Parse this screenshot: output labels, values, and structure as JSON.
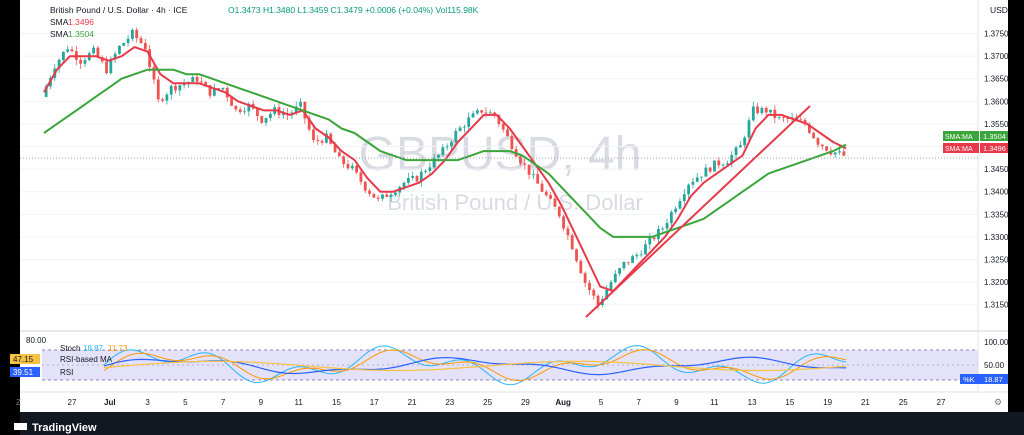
{
  "header": {
    "title": "British Pound / U.S. Dollar · 4h · ICE",
    "ohlc": "O1.3473 H1.3480 L1.3459 C1.3479 +0.0006 (+0.04%) Vol115.98K",
    "sma1": "SMA",
    "sma1_value": "1.3496",
    "sma2": "SMA",
    "sma2_value": "1.3504"
  },
  "watermark": {
    "symbol": "GBPUSD, 4h",
    "name": "British Pound / U.S. Dollar"
  },
  "currency": "USD",
  "badges": {
    "sma50_label": "SMA:MA",
    "sma50_value": "1.3504",
    "sma10_label": "SMA:MA",
    "sma10_value": "1.3496",
    "stoch_k_label": "%K",
    "stoch_k_value": "18.87"
  },
  "oscillator": {
    "stoch_label": "Stoch",
    "stoch_k": "18.87",
    "stoch_d": "11.73",
    "rsi_ma_value": "47.15",
    "rsi_ma_label": "RSI-based MA",
    "rsi_value": "39.51",
    "rsi_label": "RSI",
    "level_label": "80.00"
  },
  "brand": "TradingView",
  "colors": {
    "up": "#26a69a",
    "down": "#ef5350",
    "sma_fast": "#e8394a",
    "sma_slow": "#3aa53a",
    "trendline": "#e8394a",
    "rsi": "#2962ff",
    "rsi_ma": "#f5c242",
    "stoch_k": "#29b6f6",
    "stoch_d": "#ff9800"
  },
  "chart_data": {
    "type": "line",
    "xlabel": "",
    "ylabel": "",
    "ylim": [
      1.3125,
      1.378
    ],
    "x_ticks": [
      "27",
      "Jul",
      "3",
      "5",
      "7",
      "9",
      "11",
      "15",
      "17",
      "21",
      "23",
      "25",
      "29",
      "Aug",
      "5",
      "7",
      "9",
      "11",
      "13",
      "15",
      "19",
      "21",
      "25",
      "27"
    ],
    "y_ticks": [
      1.315,
      1.32,
      1.325,
      1.33,
      1.335,
      1.34,
      1.345,
      1.35,
      1.355,
      1.36,
      1.365,
      1.37,
      1.375
    ],
    "osc_ticks": [
      100.0,
      50.0
    ],
    "price_path": [
      1.361,
      1.368,
      1.372,
      1.369,
      1.371,
      1.367,
      1.372,
      1.375,
      1.372,
      1.36,
      1.363,
      1.364,
      1.365,
      1.362,
      1.363,
      1.358,
      1.359,
      1.356,
      1.358,
      1.357,
      1.359,
      1.351,
      1.352,
      1.347,
      1.345,
      1.341,
      1.338,
      1.34,
      1.342,
      1.343,
      1.346,
      1.349,
      1.353,
      1.356,
      1.358,
      1.357,
      1.352,
      1.347,
      1.343,
      1.339,
      1.335,
      1.328,
      1.32,
      1.315,
      1.32,
      1.324,
      1.326,
      1.329,
      1.332,
      1.337,
      1.342,
      1.344,
      1.346,
      1.347,
      1.35,
      1.358,
      1.358,
      1.356,
      1.356,
      1.355,
      1.351,
      1.349,
      1.348
    ],
    "series": [
      {
        "name": "SMA",
        "values": [
          1.362,
          1.367,
          1.37,
          1.37,
          1.37,
          1.369,
          1.37,
          1.372,
          1.371,
          1.366,
          1.364,
          1.364,
          1.364,
          1.363,
          1.362,
          1.36,
          1.359,
          1.358,
          1.358,
          1.357,
          1.358,
          1.354,
          1.352,
          1.349,
          1.347,
          1.343,
          1.34,
          1.34,
          1.341,
          1.342,
          1.344,
          1.347,
          1.351,
          1.354,
          1.357,
          1.357,
          1.354,
          1.35,
          1.346,
          1.342,
          1.337,
          1.331,
          1.325,
          1.319,
          1.318,
          1.321,
          1.324,
          1.327,
          1.33,
          1.334,
          1.339,
          1.342,
          1.344,
          1.346,
          1.348,
          1.354,
          1.357,
          1.357,
          1.356,
          1.355,
          1.353,
          1.351,
          1.3496
        ]
      },
      {
        "name": "SMA",
        "values": [
          1.353,
          1.355,
          1.357,
          1.359,
          1.361,
          1.363,
          1.365,
          1.366,
          1.367,
          1.367,
          1.367,
          1.366,
          1.366,
          1.365,
          1.364,
          1.363,
          1.362,
          1.361,
          1.36,
          1.359,
          1.358,
          1.357,
          1.356,
          1.354,
          1.353,
          1.351,
          1.349,
          1.348,
          1.347,
          1.347,
          1.347,
          1.347,
          1.347,
          1.348,
          1.349,
          1.349,
          1.349,
          1.348,
          1.346,
          1.344,
          1.341,
          1.338,
          1.335,
          1.332,
          1.33,
          1.33,
          1.33,
          1.33,
          1.331,
          1.332,
          1.333,
          1.334,
          1.336,
          1.338,
          1.34,
          1.342,
          1.344,
          1.345,
          1.346,
          1.347,
          1.348,
          1.349,
          1.3504
        ]
      }
    ]
  }
}
